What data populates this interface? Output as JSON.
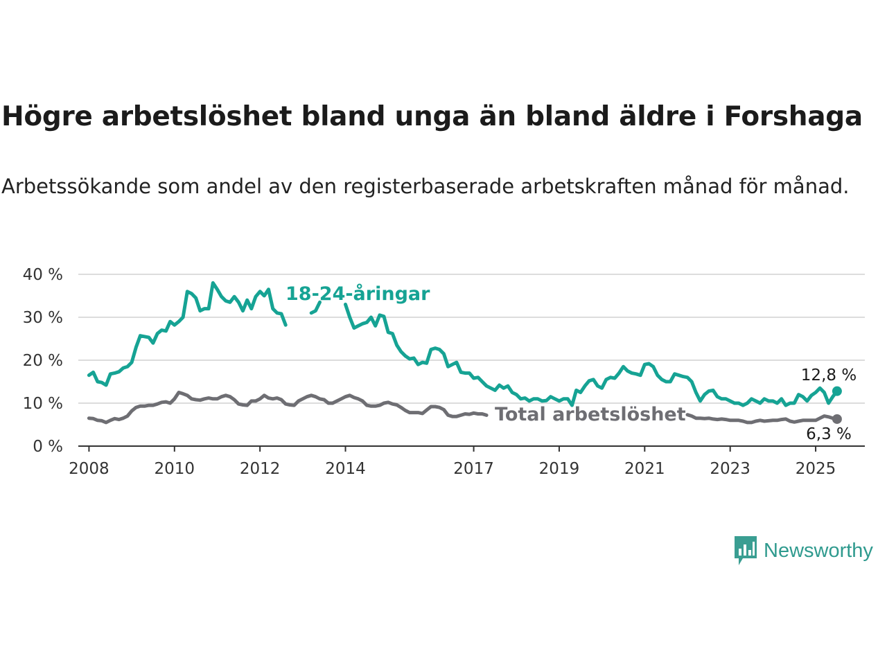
{
  "header": {
    "title": "Högre arbetslöshet bland unga än bland äldre i Forshaga",
    "subtitle": "Arbetssökande som andel av den registerbaserade arbetskraften månad för månad."
  },
  "brand": {
    "name": "Newsworthy",
    "icon": "bar-chart-speech-bubble-icon",
    "color": "#3a9e92"
  },
  "chart_data": {
    "type": "line",
    "x_ticks": [
      "2008",
      "2010",
      "2012",
      "2014",
      "2017",
      "2019",
      "2021",
      "2023",
      "2025"
    ],
    "y_ticks": [
      "0 %",
      "10 %",
      "20 %",
      "30 %",
      "40 %"
    ],
    "ylim": [
      0,
      40
    ],
    "grid": true,
    "series": [
      {
        "name": "18-24-åringar",
        "color": "#16a394",
        "end_label": "12,8 %",
        "x": [
          2008.0,
          2008.1,
          2008.2,
          2008.3,
          2008.4,
          2008.5,
          2008.6,
          2008.7,
          2008.8,
          2008.9,
          2009.0,
          2009.1,
          2009.2,
          2009.4,
          2009.5,
          2009.6,
          2009.7,
          2009.8,
          2009.9,
          2010.0,
          2010.1,
          2010.2,
          2010.3,
          2010.4,
          2010.5,
          2010.6,
          2010.7,
          2010.8,
          2010.9,
          2011.0,
          2011.1,
          2011.2,
          2011.3,
          2011.4,
          2011.5,
          2011.6,
          2011.7,
          2011.8,
          2011.9,
          2012.0,
          2012.1,
          2012.2,
          2012.3,
          2012.4,
          2012.5,
          2012.6,
          2013.2,
          2013.3,
          2013.4,
          2014.0,
          2014.1,
          2014.2,
          2014.3,
          2014.4,
          2014.5,
          2014.6,
          2014.7,
          2014.8,
          2014.9,
          2015.0,
          2015.1,
          2015.2,
          2015.3,
          2015.4,
          2015.5,
          2015.6,
          2015.7,
          2015.8,
          2015.9,
          2016.0,
          2016.1,
          2016.2,
          2016.3,
          2016.4,
          2016.5,
          2016.6,
          2016.7,
          2016.8,
          2016.9,
          2017.0,
          2017.1,
          2017.2,
          2017.3,
          2017.4,
          2017.5,
          2017.6,
          2017.7,
          2017.8,
          2017.9,
          2018.0,
          2018.1,
          2018.2,
          2018.3,
          2018.4,
          2018.5,
          2018.6,
          2018.7,
          2018.8,
          2018.9,
          2019.0,
          2019.1,
          2019.2,
          2019.3,
          2019.4,
          2019.5,
          2019.6,
          2019.7,
          2019.8,
          2019.9,
          2020.0,
          2020.1,
          2020.2,
          2020.3,
          2020.4,
          2020.5,
          2020.6,
          2020.7,
          2020.8,
          2020.9,
          2021.0,
          2021.1,
          2021.2,
          2021.3,
          2021.4,
          2021.5,
          2021.6,
          2021.7,
          2021.8,
          2021.9,
          2022.0,
          2022.1,
          2022.2,
          2022.3,
          2022.4,
          2022.5,
          2022.6,
          2022.7,
          2022.8,
          2022.9,
          2023.0,
          2023.1,
          2023.2,
          2023.3,
          2023.4,
          2023.5,
          2023.6,
          2023.7,
          2023.8,
          2023.9,
          2024.0,
          2024.1,
          2024.2,
          2024.3,
          2024.4,
          2024.5,
          2024.6,
          2024.7,
          2024.8,
          2024.9,
          2025.0,
          2025.1,
          2025.2,
          2025.3,
          2025.4,
          2025.5
        ],
        "values": [
          16.5,
          17.2,
          15.0,
          14.8,
          14.2,
          16.8,
          17.0,
          17.3,
          18.2,
          18.5,
          19.5,
          23.0,
          25.7,
          25.3,
          24.0,
          26.2,
          27.0,
          26.8,
          29.0,
          28.2,
          29.0,
          30.0,
          36.0,
          35.5,
          34.5,
          31.5,
          32.0,
          32.0,
          38.0,
          36.5,
          34.8,
          33.8,
          33.5,
          34.8,
          33.5,
          31.5,
          34.0,
          32.0,
          34.8,
          36.0,
          35.0,
          36.5,
          32.0,
          31.0,
          30.8,
          28.2,
          31.0,
          31.5,
          33.5,
          33.0,
          30.0,
          27.5,
          28.0,
          28.5,
          28.8,
          30.0,
          28.0,
          30.5,
          30.2,
          26.5,
          26.2,
          23.5,
          22.0,
          21.0,
          20.3,
          20.5,
          19.0,
          19.5,
          19.3,
          22.5,
          22.8,
          22.5,
          21.5,
          18.5,
          19.0,
          19.5,
          17.2,
          17.0,
          17.0,
          15.8,
          16.0,
          15.0,
          14.0,
          13.5,
          13.0,
          14.2,
          13.5,
          14.0,
          12.5,
          12.0,
          11.0,
          11.2,
          10.5,
          11.0,
          11.0,
          10.5,
          10.6,
          11.5,
          11.0,
          10.5,
          11.0,
          11.0,
          9.5,
          13.0,
          12.5,
          14.0,
          15.2,
          15.5,
          14.0,
          13.5,
          15.5,
          16.0,
          15.8,
          17.0,
          18.5,
          17.5,
          17.0,
          16.8,
          16.5,
          19.0,
          19.2,
          18.5,
          16.5,
          15.5,
          15.0,
          15.0,
          16.8,
          16.5,
          16.2,
          16.0,
          15.0,
          12.5,
          10.5,
          12.0,
          12.8,
          13.0,
          11.5,
          11.0,
          11.0,
          10.5,
          10.0,
          10.0,
          9.5,
          10.0,
          11.0,
          10.5,
          10.0,
          11.0,
          10.5,
          10.5,
          10.0,
          11.0,
          9.5,
          10.0,
          10.0,
          12.0,
          11.5,
          10.5,
          11.8,
          12.5,
          13.5,
          12.5,
          10.0,
          11.5,
          12.8
        ]
      },
      {
        "name": "Total arbetslöshet",
        "color": "#6e6e73",
        "end_label": "6,3 %",
        "x": [
          2008.0,
          2008.1,
          2008.2,
          2008.3,
          2008.4,
          2008.5,
          2008.6,
          2008.7,
          2008.8,
          2008.9,
          2009.0,
          2009.1,
          2009.2,
          2009.3,
          2009.4,
          2009.5,
          2009.6,
          2009.7,
          2009.8,
          2009.9,
          2010.0,
          2010.1,
          2010.2,
          2010.3,
          2010.4,
          2010.5,
          2010.6,
          2010.7,
          2010.8,
          2010.9,
          2011.0,
          2011.1,
          2011.2,
          2011.3,
          2011.4,
          2011.5,
          2011.6,
          2011.7,
          2011.8,
          2011.9,
          2012.0,
          2012.1,
          2012.2,
          2012.3,
          2012.4,
          2012.5,
          2012.6,
          2012.7,
          2012.8,
          2012.9,
          2013.0,
          2013.1,
          2013.2,
          2013.3,
          2013.4,
          2013.5,
          2013.6,
          2013.7,
          2013.8,
          2013.9,
          2014.0,
          2014.1,
          2014.2,
          2014.3,
          2014.4,
          2014.5,
          2014.6,
          2014.7,
          2014.8,
          2014.9,
          2015.0,
          2015.1,
          2015.2,
          2015.3,
          2015.4,
          2015.5,
          2015.6,
          2015.7,
          2015.8,
          2015.9,
          2016.0,
          2016.1,
          2016.2,
          2016.3,
          2016.4,
          2016.5,
          2016.6,
          2016.7,
          2016.8,
          2016.9,
          2017.0,
          2017.1,
          2017.2,
          2017.3,
          2022.0,
          2022.1,
          2022.2,
          2022.3,
          2022.4,
          2022.5,
          2022.6,
          2022.7,
          2022.8,
          2022.9,
          2023.0,
          2023.1,
          2023.2,
          2023.3,
          2023.4,
          2023.5,
          2023.6,
          2023.7,
          2023.8,
          2023.9,
          2024.0,
          2024.1,
          2024.2,
          2024.3,
          2024.4,
          2024.5,
          2024.6,
          2024.7,
          2024.8,
          2024.9,
          2025.0,
          2025.1,
          2025.2,
          2025.3,
          2025.4,
          2025.5
        ],
        "values": [
          6.5,
          6.4,
          6.0,
          5.9,
          5.5,
          6.0,
          6.4,
          6.2,
          6.5,
          7.0,
          8.2,
          9.0,
          9.3,
          9.3,
          9.5,
          9.5,
          9.8,
          10.2,
          10.3,
          10.0,
          11.0,
          12.5,
          12.2,
          11.8,
          11.0,
          10.8,
          10.7,
          11.0,
          11.2,
          11.0,
          11.0,
          11.5,
          11.8,
          11.5,
          10.8,
          9.8,
          9.6,
          9.5,
          10.5,
          10.5,
          11.0,
          11.8,
          11.2,
          11.0,
          11.2,
          10.8,
          9.8,
          9.6,
          9.5,
          10.5,
          11.0,
          11.5,
          11.8,
          11.5,
          11.0,
          10.8,
          10.0,
          10.0,
          10.5,
          11.0,
          11.5,
          11.8,
          11.3,
          11.0,
          10.5,
          9.5,
          9.3,
          9.3,
          9.5,
          10.0,
          10.2,
          9.8,
          9.6,
          9.0,
          8.3,
          7.8,
          7.8,
          7.8,
          7.6,
          8.4,
          9.2,
          9.2,
          9.0,
          8.5,
          7.2,
          6.9,
          6.9,
          7.2,
          7.5,
          7.4,
          7.7,
          7.5,
          7.5,
          7.2,
          7.3,
          7.0,
          6.5,
          6.5,
          6.4,
          6.5,
          6.3,
          6.2,
          6.3,
          6.2,
          6.0,
          6.0,
          6.0,
          5.8,
          5.5,
          5.5,
          5.8,
          6.0,
          5.8,
          5.9,
          6.0,
          6.0,
          6.2,
          6.3,
          5.8,
          5.6,
          5.8,
          6.0,
          6.0,
          6.0,
          6.0,
          6.5,
          7.0,
          6.8,
          6.5,
          6.3
        ]
      }
    ]
  }
}
